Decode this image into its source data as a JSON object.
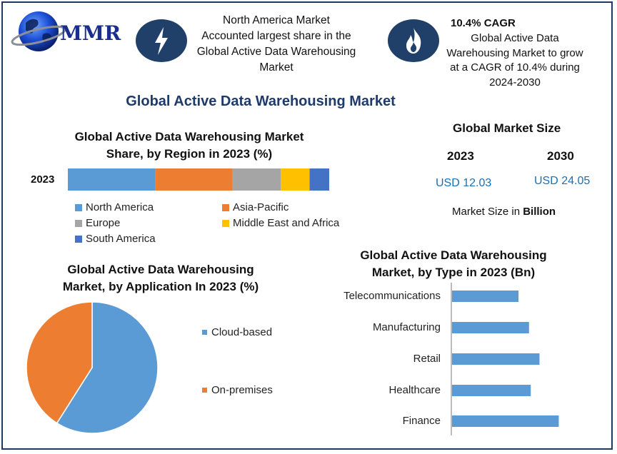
{
  "brand": {
    "logo_text": "MMR"
  },
  "highlights": {
    "region": {
      "icon": "lightning-icon",
      "text_lines": [
        "North America Market",
        "Accounted largest share in the",
        "Global Active Data Warehousing",
        "Market"
      ]
    },
    "cagr": {
      "icon": "flame-icon",
      "title": "10.4% CAGR",
      "text_lines": [
        "Global Active Data",
        "Warehousing Market to grow",
        "at a CAGR of 10.4% during",
        "2024-2030"
      ]
    }
  },
  "main_title": "Global Active Data Warehousing Market",
  "market_size": {
    "title": "Global Market Size",
    "years": [
      "2023",
      "2030"
    ],
    "values": [
      "USD 12.03",
      "USD 24.05"
    ],
    "note_prefix": "Market Size in",
    "note_bold": "Billion"
  },
  "colors": {
    "north_america": "#5b9bd5",
    "asia_pacific": "#ed7d31",
    "europe": "#a5a5a5",
    "mea": "#ffc000",
    "south_america": "#4472c4",
    "title_blue": "#1e3a6b",
    "value_blue": "#1b6fb3",
    "badge": "#20406a"
  },
  "chart_data": [
    {
      "type": "bar",
      "orientation": "horizontal-stacked",
      "title_lines": [
        "Global Active Data Warehousing Market",
        "Share, by Region in 2023 (%)"
      ],
      "categories": [
        "2023"
      ],
      "series": [
        {
          "name": "North America",
          "values": [
            33.5
          ]
        },
        {
          "name": "Asia-Pacific",
          "values": [
            29.5
          ]
        },
        {
          "name": "Europe",
          "values": [
            18.5
          ]
        },
        {
          "name": "Middle East and Africa",
          "values": [
            11
          ]
        },
        {
          "name": "South America",
          "values": [
            7.5
          ]
        }
      ],
      "xlim": [
        0,
        100
      ],
      "grid": false,
      "legend": "bottom"
    },
    {
      "type": "pie",
      "title_lines": [
        "Global Active Data Warehousing",
        "Market, by Application In 2023 (%)"
      ],
      "labels": [
        "Cloud-based",
        "On-premises"
      ],
      "values": [
        59,
        41
      ],
      "colors": [
        "#5b9bd5",
        "#ed7d31"
      ],
      "legend": "right"
    },
    {
      "type": "bar",
      "orientation": "horizontal",
      "title_lines": [
        "Global Active Data Warehousing",
        "Market, by Type in 2023 (Bn)"
      ],
      "categories": [
        "Telecommunications",
        "Manufacturing",
        "Retail",
        "Healthcare",
        "Finance"
      ],
      "values": [
        1.9,
        2.2,
        2.5,
        2.25,
        3.05
      ],
      "xlim": [
        0,
        4
      ],
      "color": "#5b9bd5",
      "grid": false
    }
  ]
}
